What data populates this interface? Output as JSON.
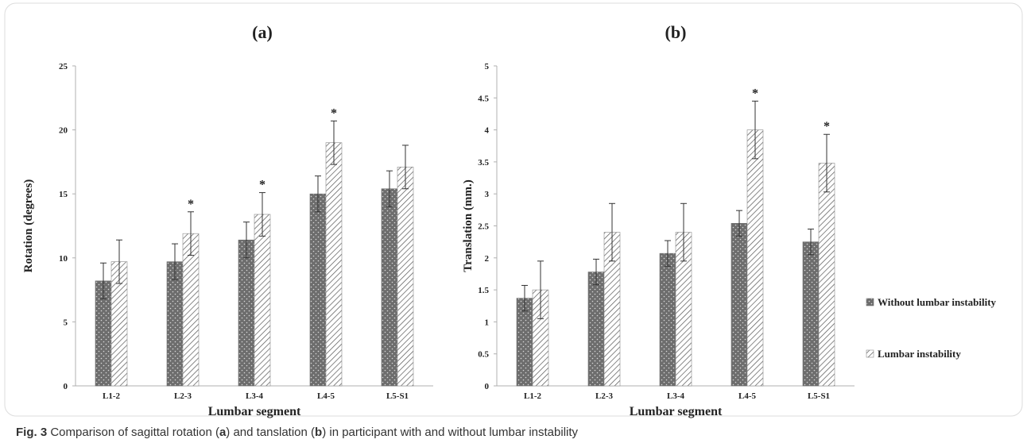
{
  "caption": {
    "prefix": "Fig. 3",
    "text_1": "Comparison of sagittal rotation (",
    "a": "a",
    "text_2": ") and tanslation (",
    "b": "b",
    "text_3": ") in participant with and without lumbar instability"
  },
  "colors": {
    "without": "#6d6d6d",
    "with": "#ffffff",
    "hatch": "#555555",
    "axis": "#b0b0b0",
    "text": "#222222"
  },
  "legend": {
    "placement": "right",
    "entries": [
      "Without lumbar instability",
      "Lumbar instability"
    ]
  },
  "chart_data": [
    {
      "type": "bar",
      "title": "(a)",
      "xlabel": "Lumbar segment",
      "ylabel": "Rotation (degrees)",
      "ylim": [
        0,
        25
      ],
      "yticks": [
        "0",
        "5",
        "10",
        "15",
        "20",
        "25"
      ],
      "categories": [
        "L1-2",
        "L2-3",
        "L3-4",
        "L4-5",
        "L5-S1"
      ],
      "series": [
        {
          "name": "Without lumbar instability",
          "values": [
            8.2,
            9.7,
            11.4,
            15.0,
            15.4
          ],
          "errors": [
            1.4,
            1.4,
            1.4,
            1.4,
            1.4
          ]
        },
        {
          "name": "Lumbar instability",
          "values": [
            9.7,
            11.9,
            13.4,
            19.0,
            17.1
          ],
          "errors": [
            1.7,
            1.7,
            1.7,
            1.7,
            1.7
          ]
        }
      ],
      "significance": [
        "",
        "*",
        "*",
        "*",
        ""
      ],
      "grid": false
    },
    {
      "type": "bar",
      "title": "(b)",
      "xlabel": "Lumbar segment",
      "ylabel": "Translation (mm.)",
      "ylim": [
        0,
        5
      ],
      "yticks": [
        "0",
        "0.5",
        "1",
        "1.5",
        "2",
        "2.5",
        "3",
        "3.5",
        "4",
        "4.5",
        "5"
      ],
      "categories": [
        "L1-2",
        "L2-3",
        "L3-4",
        "L4-5",
        "L5-S1"
      ],
      "series": [
        {
          "name": "Without lumbar instability",
          "values": [
            1.37,
            1.78,
            2.07,
            2.54,
            2.25
          ],
          "errors": [
            0.2,
            0.2,
            0.2,
            0.2,
            0.2
          ]
        },
        {
          "name": "Lumbar instability",
          "values": [
            1.5,
            2.4,
            2.4,
            4.0,
            3.48
          ],
          "errors": [
            0.45,
            0.45,
            0.45,
            0.45,
            0.45
          ]
        }
      ],
      "significance": [
        "",
        "",
        "",
        "*",
        "*"
      ],
      "grid": false
    }
  ]
}
